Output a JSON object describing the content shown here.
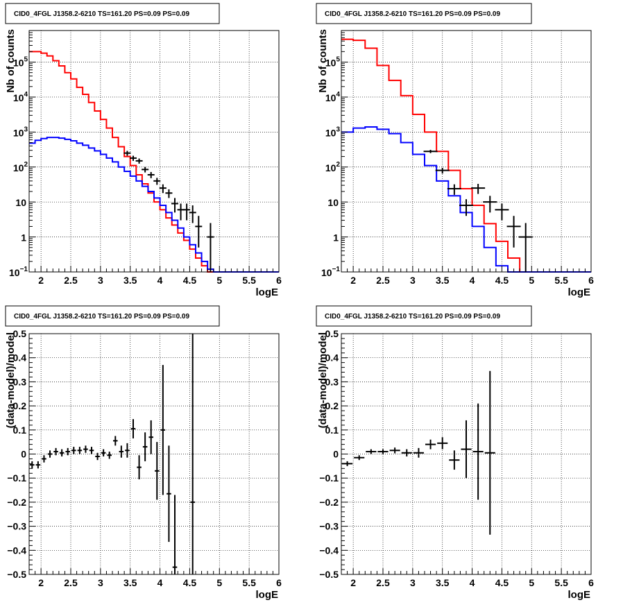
{
  "chart_data": [
    {
      "id": "top-left",
      "type": "line",
      "title": "CID0_4FGL J1358.2-6210 TS=161.20 PS=0.09 PS=0.09",
      "xlabel": "logE",
      "ylabel": "Nb of counts",
      "xlim": [
        1.8,
        6
      ],
      "ylim": [
        0.1,
        800000
      ],
      "log_y": true,
      "grid": true,
      "x_ticks": [
        "2",
        "2.5",
        "3",
        "3.5",
        "4",
        "4.5",
        "5",
        "5.5",
        "6"
      ],
      "y_ticks": [
        {
          "base": "10",
          "exp": "−1"
        },
        {
          "base": "1",
          "exp": ""
        },
        {
          "base": "10",
          "exp": ""
        },
        {
          "base": "10",
          "exp": "2"
        },
        {
          "base": "10",
          "exp": "3"
        },
        {
          "base": "10",
          "exp": "4"
        },
        {
          "base": "10",
          "exp": "5"
        }
      ],
      "series": [
        {
          "color": "#ff0000",
          "kind": "step",
          "x_edges": [
            1.8,
            1.9,
            2.0,
            2.1,
            2.2,
            2.3,
            2.4,
            2.5,
            2.6,
            2.7,
            2.8,
            2.9,
            3.0,
            3.1,
            3.2,
            3.3,
            3.4,
            3.5,
            3.6,
            3.7,
            3.8,
            3.9,
            4.0,
            4.1,
            4.2,
            4.3,
            4.4,
            4.5,
            4.6,
            4.7,
            4.8,
            4.9,
            5.0,
            5.1,
            5.2,
            5.3,
            5.4,
            5.5,
            5.6,
            5.7,
            5.8,
            5.9,
            6.0
          ],
          "values": [
            200000,
            200000,
            180000,
            150000,
            110000,
            78000,
            50000,
            33000,
            19000,
            12000,
            7000,
            4000,
            2300,
            1300,
            700,
            380,
            200,
            110,
            60,
            33,
            18,
            10,
            6,
            3.5,
            2.2,
            1.3,
            0.8,
            0.45,
            0.25,
            0.15,
            0.1,
            0.1,
            0.1,
            0.1,
            0.1,
            0.1,
            0.1,
            0.1,
            0.1,
            0.1,
            0.1,
            0.1
          ]
        },
        {
          "color": "#0000ff",
          "kind": "step",
          "x_edges": [
            1.8,
            1.9,
            2.0,
            2.1,
            2.2,
            2.3,
            2.4,
            2.5,
            2.6,
            2.7,
            2.8,
            2.9,
            3.0,
            3.1,
            3.2,
            3.3,
            3.4,
            3.5,
            3.6,
            3.7,
            3.8,
            3.9,
            4.0,
            4.1,
            4.2,
            4.3,
            4.4,
            4.5,
            4.6,
            4.7,
            4.8,
            4.9,
            5.0,
            5.1,
            5.2,
            5.3,
            5.4,
            5.5,
            5.6,
            5.7,
            5.8,
            5.9,
            6.0
          ],
          "values": [
            480,
            580,
            650,
            700,
            700,
            670,
            620,
            560,
            480,
            420,
            350,
            290,
            230,
            180,
            140,
            100,
            75,
            55,
            40,
            28,
            20,
            13,
            8,
            5,
            3,
            1.8,
            1,
            0.6,
            0.35,
            0.2,
            0.12,
            0.1,
            0.1,
            0.1,
            0.1,
            0.1,
            0.1,
            0.1,
            0.1,
            0.1,
            0.1,
            0.1
          ]
        }
      ],
      "data_points": {
        "color": "#000000",
        "x": [
          3.45,
          3.55,
          3.65,
          3.75,
          3.85,
          3.95,
          4.05,
          4.15,
          4.25,
          4.35,
          4.45,
          4.55,
          4.65,
          4.85
        ],
        "y": [
          250,
          180,
          150,
          85,
          60,
          40,
          25,
          18,
          9,
          6,
          6,
          5,
          2,
          1
        ],
        "err_lo": [
          40,
          30,
          25,
          15,
          12,
          9,
          7,
          5,
          4,
          3,
          3,
          2.5,
          1.5,
          0.9
        ],
        "err_hi": [
          40,
          30,
          25,
          15,
          12,
          9,
          7,
          5,
          4,
          3,
          3,
          3,
          2,
          1.5
        ]
      }
    },
    {
      "id": "top-right",
      "type": "line",
      "title": "CID0_4FGL J1358.2-6210 TS=161.20 PS=0.09 PS=0.09",
      "xlabel": "logE",
      "ylabel": "Nb of counts",
      "xlim": [
        1.8,
        6
      ],
      "ylim": [
        0.1,
        800000
      ],
      "log_y": true,
      "grid": true,
      "x_ticks": [
        "2",
        "2.5",
        "3",
        "3.5",
        "4",
        "4.5",
        "5",
        "5.5",
        "6"
      ],
      "y_ticks": [
        {
          "base": "10",
          "exp": "−1"
        },
        {
          "base": "1",
          "exp": ""
        },
        {
          "base": "10",
          "exp": ""
        },
        {
          "base": "10",
          "exp": "2"
        },
        {
          "base": "10",
          "exp": "3"
        },
        {
          "base": "10",
          "exp": "4"
        },
        {
          "base": "10",
          "exp": "5"
        }
      ],
      "series": [
        {
          "color": "#ff0000",
          "kind": "step",
          "x_edges": [
            1.8,
            2.0,
            2.2,
            2.4,
            2.6,
            2.8,
            3.0,
            3.2,
            3.4,
            3.6,
            3.8,
            4.0,
            4.2,
            4.4,
            4.6,
            4.8,
            5.0,
            5.2,
            5.4,
            5.6,
            5.8,
            6.0
          ],
          "values": [
            450000,
            420000,
            250000,
            80000,
            30000,
            11000,
            3200,
            1000,
            280,
            80,
            24,
            8,
            2.4,
            0.75,
            0.25,
            0.1,
            0.1,
            0.1,
            0.1,
            0.1,
            0.1
          ],
          "hatched_label": null
        },
        {
          "color": "#0000ff",
          "kind": "step",
          "x_edges": [
            1.8,
            2.0,
            2.2,
            2.4,
            2.6,
            2.8,
            3.0,
            3.2,
            3.4,
            3.6,
            3.8,
            4.0,
            4.2,
            4.4,
            4.6,
            4.8,
            5.0,
            5.2,
            5.4,
            5.6,
            5.8,
            6.0
          ],
          "values": [
            1000,
            1300,
            1400,
            1200,
            900,
            500,
            230,
            110,
            40,
            15,
            5,
            2,
            0.5,
            0.15,
            0.1,
            0.1,
            0.1,
            0.1,
            0.1,
            0.1,
            0.1
          ]
        }
      ],
      "data_points": {
        "color": "#000000",
        "x": [
          3.3,
          3.5,
          3.7,
          3.9,
          4.1,
          4.3,
          4.5,
          4.7,
          4.9
        ],
        "y": [
          280,
          80,
          24,
          8,
          25,
          10,
          6,
          2,
          1
        ],
        "err_lo": [
          30,
          15,
          8,
          4,
          8,
          5,
          3,
          1.5,
          0.9
        ],
        "err_hi": [
          30,
          15,
          8,
          4,
          8,
          5,
          3,
          2,
          1.5
        ]
      }
    },
    {
      "id": "bottom-left",
      "type": "scatter",
      "title": "CID0_4FGL J1358.2-6210 TS=161.20 PS=0.09 PS=0.09",
      "xlabel": "logE",
      "ylabel": "(data-model)/model",
      "xlim": [
        1.8,
        6
      ],
      "ylim": [
        -0.5,
        0.5
      ],
      "grid": true,
      "x_ticks": [
        "2",
        "2.5",
        "3",
        "3.5",
        "4",
        "4.5",
        "5",
        "5.5",
        "6"
      ],
      "y_ticks": [
        "−0.5",
        "−0.4",
        "−0.3",
        "−0.2",
        "−0.1",
        "0",
        "0.1",
        "0.2",
        "0.3",
        "0.4",
        "0.5"
      ],
      "points": {
        "x": [
          1.85,
          1.95,
          2.05,
          2.15,
          2.25,
          2.35,
          2.45,
          2.55,
          2.65,
          2.75,
          2.85,
          2.95,
          3.05,
          3.15,
          3.25,
          3.35,
          3.45,
          3.55,
          3.65,
          3.75,
          3.85,
          3.95,
          4.05,
          4.15,
          4.25,
          4.55
        ],
        "y": [
          -0.045,
          -0.045,
          -0.02,
          0.0,
          0.01,
          0.005,
          0.01,
          0.015,
          0.015,
          0.02,
          0.015,
          -0.01,
          0.005,
          -0.005,
          0.055,
          0.01,
          0.015,
          0.105,
          -0.055,
          0.03,
          0.07,
          -0.07,
          0.1,
          -0.165,
          -0.47,
          -0.2
        ],
        "err": [
          0.015,
          0.015,
          0.015,
          0.015,
          0.015,
          0.015,
          0.015,
          0.015,
          0.015,
          0.015,
          0.015,
          0.015,
          0.015,
          0.015,
          0.02,
          0.025,
          0.03,
          0.04,
          0.05,
          0.06,
          0.07,
          0.12,
          0.27,
          0.2,
          0.3,
          0.8
        ]
      }
    },
    {
      "id": "bottom-right",
      "type": "scatter",
      "title": "CID0_4FGL J1358.2-6210 TS=161.20 PS=0.09 PS=0.09",
      "xlabel": "logE",
      "ylabel": "(data-model)/model",
      "xlim": [
        1.8,
        6
      ],
      "ylim": [
        -0.5,
        0.5
      ],
      "grid": true,
      "x_ticks": [
        "2",
        "2.5",
        "3",
        "3.5",
        "4",
        "4.5",
        "5",
        "5.5",
        "6"
      ],
      "y_ticks": [
        "−0.5",
        "−0.4",
        "−0.3",
        "−0.2",
        "−0.1",
        "0",
        "0.1",
        "0.2",
        "0.3",
        "0.4",
        "0.5"
      ],
      "points": {
        "x": [
          1.9,
          2.1,
          2.3,
          2.5,
          2.7,
          2.9,
          3.1,
          3.3,
          3.5,
          3.7,
          3.9,
          4.1,
          4.3
        ],
        "y": [
          -0.04,
          -0.015,
          0.01,
          0.01,
          0.015,
          0.005,
          0.005,
          0.04,
          0.045,
          -0.025,
          0.02,
          0.01,
          0.005
        ],
        "err": [
          0.01,
          0.01,
          0.01,
          0.01,
          0.012,
          0.015,
          0.02,
          0.02,
          0.025,
          0.04,
          0.12,
          0.2,
          0.34
        ]
      }
    }
  ]
}
